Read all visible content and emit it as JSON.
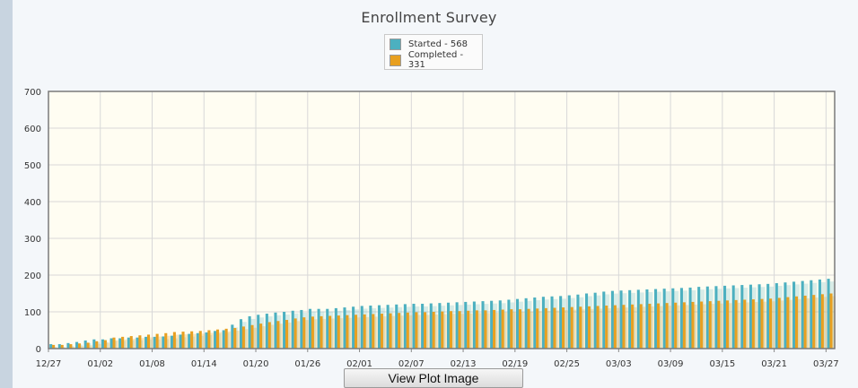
{
  "chart_data": {
    "type": "bar",
    "title": "Enrollment Survey",
    "xlabel": "",
    "ylabel": "",
    "ylim": [
      0,
      700
    ],
    "yticks": [
      0,
      100,
      200,
      300,
      400,
      500,
      600,
      700
    ],
    "xticks": [
      "12/27",
      "01/02",
      "01/08",
      "01/14",
      "01/20",
      "01/26",
      "02/01",
      "02/07",
      "02/13",
      "02/19",
      "02/25",
      "03/03",
      "03/09",
      "03/15",
      "03/21",
      "03/27"
    ],
    "x_start": "12/27",
    "days": 91,
    "legend_position": "top-center",
    "grid": true,
    "series": [
      {
        "name": "Started - 568",
        "color": "#4cb0c0",
        "values": [
          12,
          12,
          15,
          18,
          22,
          25,
          25,
          28,
          28,
          30,
          30,
          32,
          32,
          33,
          35,
          38,
          40,
          42,
          44,
          48,
          50,
          65,
          80,
          88,
          92,
          95,
          98,
          100,
          103,
          105,
          108,
          108,
          108,
          110,
          112,
          114,
          116,
          117,
          118,
          119,
          120,
          121,
          122,
          122,
          123,
          124,
          125,
          126,
          127,
          128,
          129,
          130,
          131,
          133,
          135,
          137,
          139,
          141,
          142,
          143,
          145,
          147,
          150,
          152,
          155,
          157,
          158,
          159,
          160,
          161,
          162,
          163,
          164,
          165,
          166,
          168,
          169,
          170,
          171,
          172,
          173,
          174,
          175,
          176,
          178,
          180,
          182,
          184,
          186,
          188,
          190
        ]
      },
      {
        "name": "Completed - 331",
        "color": "#e8a020",
        "values": [
          10,
          10,
          12,
          14,
          16,
          20,
          23,
          30,
          32,
          34,
          36,
          38,
          40,
          42,
          45,
          46,
          47,
          48,
          50,
          52,
          54,
          56,
          60,
          64,
          68,
          72,
          75,
          78,
          82,
          85,
          87,
          88,
          89,
          90,
          91,
          92,
          93,
          94,
          95,
          96,
          97,
          98,
          99,
          99,
          100,
          101,
          102,
          102,
          103,
          104,
          104,
          105,
          106,
          107,
          107,
          108,
          109,
          110,
          111,
          112,
          113,
          114,
          115,
          116,
          117,
          118,
          119,
          120,
          121,
          122,
          123,
          124,
          125,
          126,
          127,
          128,
          129,
          130,
          131,
          132,
          133,
          134,
          135,
          136,
          138,
          140,
          142,
          144,
          146,
          148,
          150
        ]
      }
    ]
  },
  "legend": {
    "started_label": "Started - 568",
    "completed_label": "Completed - 331"
  },
  "buttons": {
    "view_plot_image": "View Plot Image"
  }
}
